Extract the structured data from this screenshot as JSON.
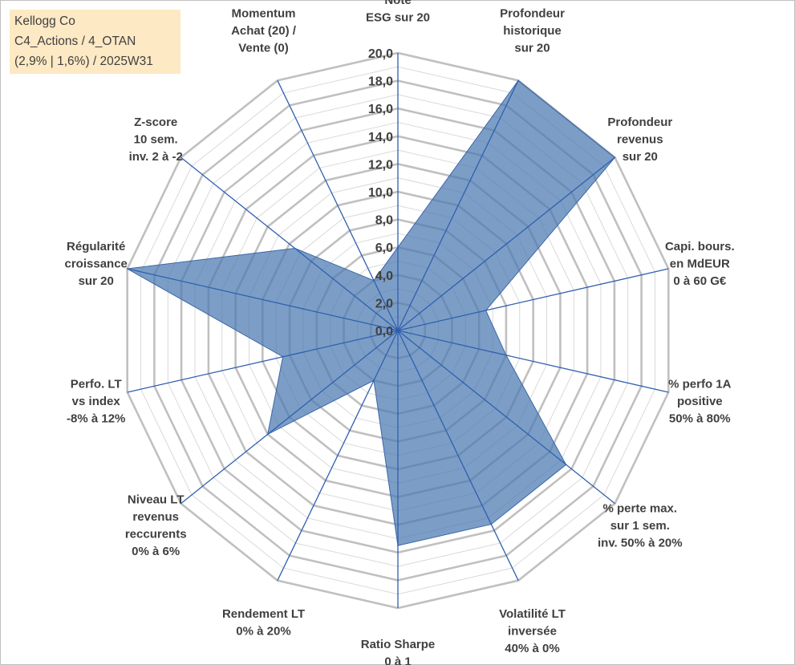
{
  "info": {
    "line1": "Kellogg Co",
    "line2": "C4_Actions / 4_OTAN",
    "line3": "(2,9% | 1,6%) / 2025W31"
  },
  "colors": {
    "fill": "#4a78b0",
    "stroke": "#3a66a8",
    "spoke": "#2f5fb0",
    "grid_major": "#c0c0c0",
    "grid_minor": "#d9d9d9",
    "info_bg": "#fde9c4"
  },
  "chart_data": {
    "type": "radar",
    "title": "",
    "scale": {
      "min": 0,
      "max": 20,
      "major_step": 2,
      "minor_step": 1
    },
    "tick_labels": [
      "0,0",
      "2,0",
      "4,0",
      "6,0",
      "8,0",
      "10,0",
      "12,0",
      "14,0",
      "16,0",
      "18,0",
      "20,0"
    ],
    "axes": [
      {
        "lines": [
          "Note",
          "ESG sur 20"
        ],
        "value": 6.0
      },
      {
        "lines": [
          "Profondeur",
          "historique",
          "sur 20"
        ],
        "value": 20.0
      },
      {
        "lines": [
          "Profondeur",
          "revenus",
          "sur 20"
        ],
        "value": 20.0
      },
      {
        "lines": [
          "Capi. bours.",
          "en MdEUR",
          "0 à 60 G€"
        ],
        "value": 6.5
      },
      {
        "lines": [
          "% perfo 1A",
          "positive",
          "50% à 80%"
        ],
        "value": 8.0
      },
      {
        "lines": [
          "% perte max.",
          "sur 1 sem.",
          "inv. 50% à 20%"
        ],
        "value": 15.5
      },
      {
        "lines": [
          "Volatilité LT",
          "inversée",
          "40% à 0%"
        ],
        "value": 15.5
      },
      {
        "lines": [
          "Ratio Sharpe",
          "0 à 1"
        ],
        "value": 15.5
      },
      {
        "lines": [
          "Rendement LT",
          "0% à 20%"
        ],
        "value": 4.0
      },
      {
        "lines": [
          "Niveau LT",
          "revenus",
          "reccurents",
          "0% à 6%"
        ],
        "value": 12.0
      },
      {
        "lines": [
          "Perfo. LT",
          "vs index",
          "-8% à 12%"
        ],
        "value": 8.5
      },
      {
        "lines": [
          "Régularité",
          "croissance",
          "sur 20"
        ],
        "value": 20.0
      },
      {
        "lines": [
          "Z-score",
          "10 sem.",
          "inv. 2 à -2"
        ],
        "value": 9.5
      },
      {
        "lines": [
          "Momentum",
          "Achat (20) /",
          "Vente (0)"
        ],
        "value": 4.0
      }
    ]
  }
}
